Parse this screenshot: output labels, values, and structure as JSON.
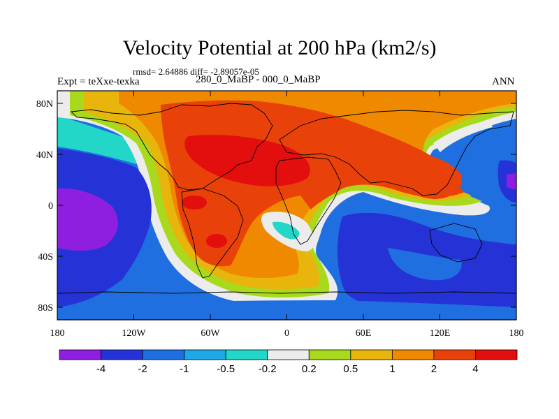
{
  "title": "Velocity Potential at 200 hPa (km2/s)",
  "stats": "rmsd= 2.64886 diff= -2.89057e-05",
  "expt": "Expt = teXxe-texka",
  "subtitle": "280_0_MaBP - 000_0_MaBP",
  "season": "ANN",
  "y_ticks": [
    "80N",
    "40N",
    "0",
    "40S",
    "80S"
  ],
  "x_ticks": [
    "180",
    "120W",
    "60W",
    "0",
    "60E",
    "120E",
    "180"
  ],
  "colorbar": {
    "colors": [
      "#8f1fe0",
      "#2533d6",
      "#1f6fe0",
      "#1ea8e8",
      "#22d6c8",
      "#ececec",
      "#a8d91c",
      "#e8b50c",
      "#ef8a00",
      "#e8420a",
      "#e30e0e"
    ],
    "labels": [
      "-4",
      "-2",
      "-1",
      "-0.5",
      "-0.2",
      "0.2",
      "0.5",
      "1",
      "2",
      "4"
    ]
  }
}
